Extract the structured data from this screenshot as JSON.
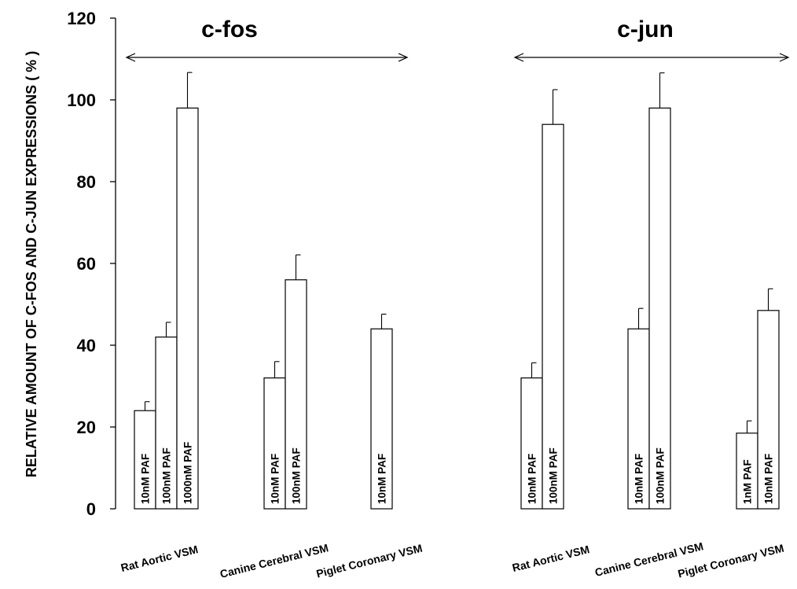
{
  "chart_data": {
    "type": "bar",
    "ylabel": "RELATIVE AMOUNT OF C-FOS AND C-JUN EXPRESSIONS ( % )",
    "ylim": [
      0,
      120
    ],
    "yticks": [
      0,
      20,
      40,
      60,
      80,
      100,
      120
    ],
    "grid": false,
    "groups": [
      {
        "label": "c-fos",
        "categories": [
          {
            "label": "Rat Aortic VSM",
            "bars": [
              {
                "label": "10nM  PAF",
                "value": 24,
                "error": 2.2
              },
              {
                "label": "100nM  PAF",
                "value": 42,
                "error": 3.6
              },
              {
                "label": "1000nM  PAF",
                "value": 98,
                "error": 8.7
              }
            ]
          },
          {
            "label": "Canine Cerebral VSM",
            "bars": [
              {
                "label": "10nM  PAF",
                "value": 32,
                "error": 4
              },
              {
                "label": "100nM  PAF",
                "value": 56,
                "error": 6.1
              }
            ]
          },
          {
            "label": "Piglet Coronary VSM",
            "bars": [
              {
                "label": "10nM  PAF",
                "value": 44,
                "error": 3.6
              }
            ]
          }
        ]
      },
      {
        "label": "c-jun",
        "categories": [
          {
            "label": "Rat Aortic VSM",
            "bars": [
              {
                "label": "10nM  PAF",
                "value": 32,
                "error": 3.7
              },
              {
                "label": "100nM  PAF",
                "value": 94,
                "error": 8.5
              }
            ]
          },
          {
            "label": "Canine Cerebral VSM",
            "bars": [
              {
                "label": "10nM  PAF",
                "value": 44,
                "error": 5
              },
              {
                "label": "100nM  PAF",
                "value": 98,
                "error": 8.6
              }
            ]
          },
          {
            "label": "Piglet Coronary VSM",
            "bars": [
              {
                "label": "1nM  PAF",
                "value": 18.5,
                "error": 3
              },
              {
                "label": "10nM  PAF",
                "value": 48.5,
                "error": 5.3
              }
            ]
          }
        ]
      }
    ]
  }
}
